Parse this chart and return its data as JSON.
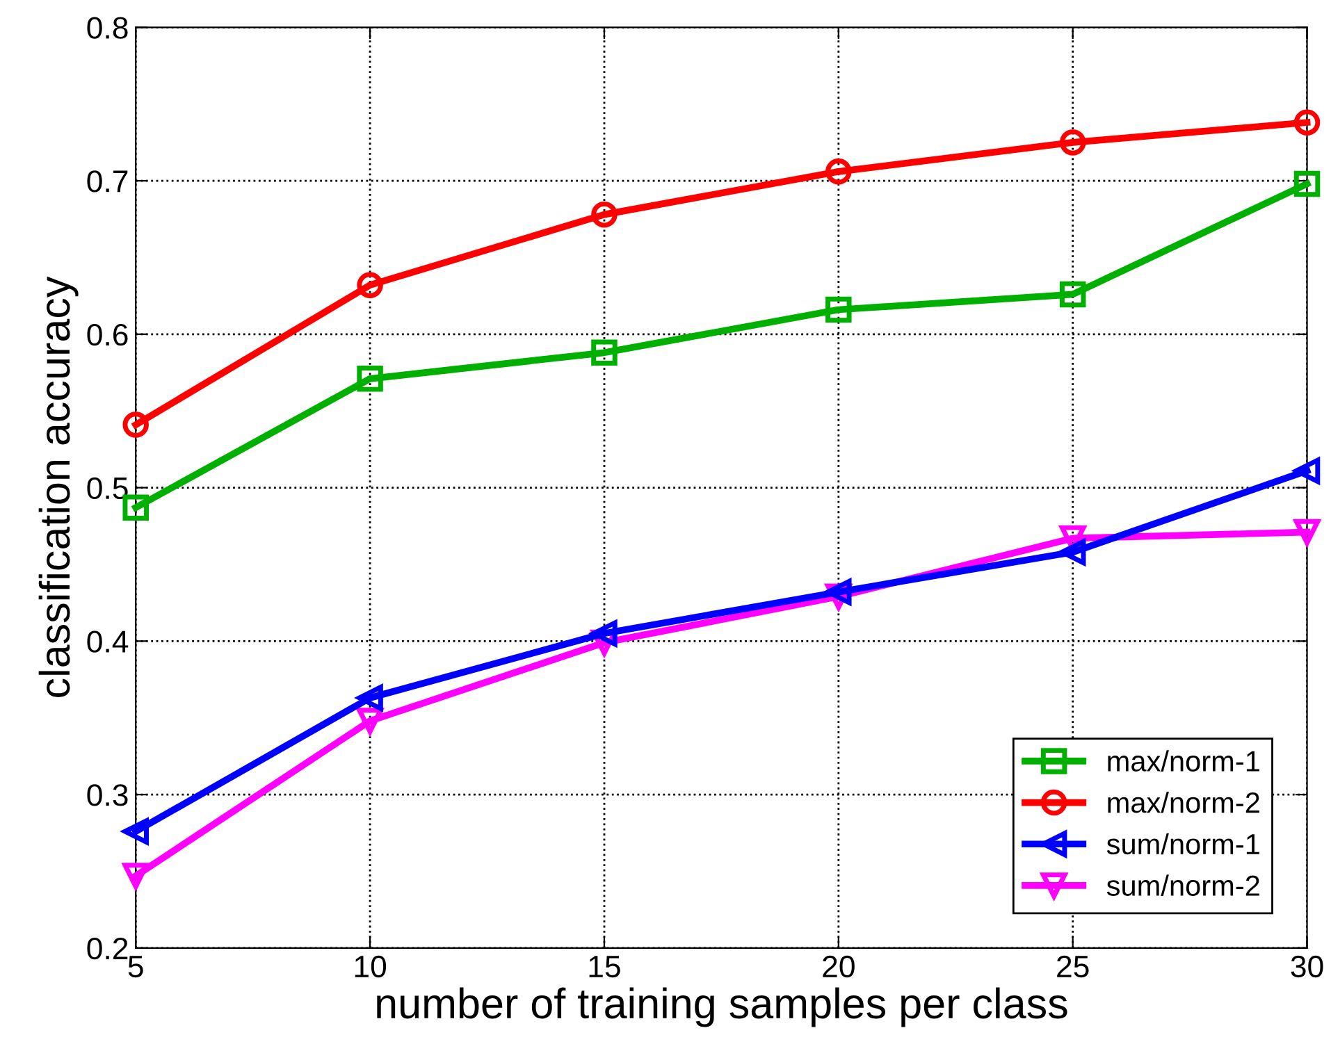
{
  "chart_data": {
    "type": "line",
    "xlabel": "number of training samples per class",
    "ylabel": "classification accuracy",
    "x": [
      5,
      10,
      15,
      20,
      25,
      30
    ],
    "series": [
      {
        "name": "max/norm-1",
        "color": "#00b000",
        "marker": "square",
        "values": [
          0.487,
          0.571,
          0.588,
          0.616,
          0.626,
          0.698
        ]
      },
      {
        "name": "max/norm-2",
        "color": "#ff0000",
        "marker": "circle",
        "values": [
          0.541,
          0.632,
          0.678,
          0.706,
          0.725,
          0.738
        ]
      },
      {
        "name": "sum/norm-1",
        "color": "#0000ff",
        "marker": "triangle-left",
        "values": [
          0.276,
          0.363,
          0.405,
          0.432,
          0.458,
          0.511
        ]
      },
      {
        "name": "sum/norm-2",
        "color": "#ff00ff",
        "marker": "triangle-down",
        "values": [
          0.247,
          0.348,
          0.399,
          0.429,
          0.467,
          0.471
        ]
      }
    ],
    "xlim": [
      5,
      30
    ],
    "xticks": [
      5,
      10,
      15,
      20,
      25,
      30
    ],
    "ylim": [
      0.2,
      0.8
    ],
    "yticks": [
      0.2,
      0.3,
      0.4,
      0.5,
      0.6,
      0.7,
      0.8
    ],
    "grid": true,
    "legend": "bottom right",
    "line_style": "solid"
  }
}
